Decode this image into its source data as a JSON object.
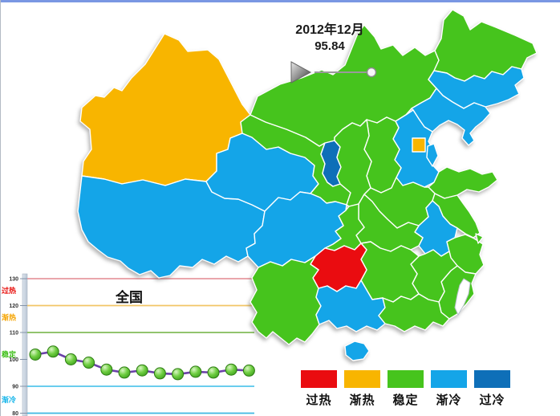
{
  "page": {
    "top_border_color": "#7a97e3"
  },
  "header": {
    "date": "2012年12月",
    "value": "95.84"
  },
  "timeline": {
    "state": "paused",
    "position_pct": 100
  },
  "legend": [
    {
      "status": "过热",
      "color": "#ea0c10"
    },
    {
      "status": "渐热",
      "color": "#f8b500"
    },
    {
      "status": "稳定",
      "color": "#46c41d"
    },
    {
      "status": "渐冷",
      "color": "#14a5e8"
    },
    {
      "status": "过冷",
      "color": "#0e6fb8"
    }
  ],
  "map": {
    "status_colors": {
      "过热": "#ea0c10",
      "渐热": "#f8b500",
      "稳定": "#46c41d",
      "渐冷": "#14a5e8",
      "过冷": "#0e6fb8",
      "无数据": "#ffffff"
    },
    "provinces": [
      {
        "name": "新疆",
        "status": "渐热"
      },
      {
        "name": "西藏",
        "status": "渐冷"
      },
      {
        "name": "青海",
        "status": "渐冷"
      },
      {
        "name": "甘肃",
        "status": "稳定"
      },
      {
        "name": "宁夏",
        "status": "过冷"
      },
      {
        "name": "内蒙古",
        "status": "稳定"
      },
      {
        "name": "黑龙江",
        "status": "稳定"
      },
      {
        "name": "吉林",
        "status": "渐冷"
      },
      {
        "name": "辽宁",
        "status": "渐冷"
      },
      {
        "name": "河北",
        "status": "渐冷"
      },
      {
        "name": "北京",
        "status": "渐热"
      },
      {
        "name": "天津",
        "status": "渐冷"
      },
      {
        "name": "山西",
        "status": "稳定"
      },
      {
        "name": "陕西",
        "status": "稳定"
      },
      {
        "name": "山东",
        "status": "稳定"
      },
      {
        "name": "河南",
        "status": "稳定"
      },
      {
        "name": "江苏",
        "status": "稳定"
      },
      {
        "name": "上海",
        "status": "稳定"
      },
      {
        "name": "安徽",
        "status": "渐冷"
      },
      {
        "name": "浙江",
        "status": "稳定"
      },
      {
        "name": "福建",
        "status": "稳定"
      },
      {
        "name": "江西",
        "status": "稳定"
      },
      {
        "name": "湖北",
        "status": "稳定"
      },
      {
        "name": "湖南",
        "status": "稳定"
      },
      {
        "name": "重庆",
        "status": "稳定"
      },
      {
        "name": "四川",
        "status": "渐冷"
      },
      {
        "name": "贵州",
        "status": "过热"
      },
      {
        "name": "云南",
        "status": "稳定"
      },
      {
        "name": "广西",
        "status": "渐冷"
      },
      {
        "name": "广东",
        "status": "稳定"
      },
      {
        "name": "海南",
        "status": "渐冷"
      },
      {
        "name": "台湾",
        "status": "无数据"
      }
    ]
  },
  "chart_data": {
    "type": "line",
    "title": "全国",
    "values": [
      101.8,
      102.9,
      100.0,
      98.8,
      96.2,
      95.1,
      95.9,
      94.8,
      94.5,
      95.4,
      95.1,
      96.2,
      95.84
    ],
    "current_value": 95.84,
    "yticks": [
      130,
      120,
      110,
      100,
      90,
      80
    ],
    "ylim": [
      78,
      132
    ],
    "grid": false,
    "legend_position": "none",
    "threshold_lines": [
      {
        "value": 130,
        "color": "#e79aa0"
      },
      {
        "value": 120,
        "color": "#f2c566"
      },
      {
        "value": 110,
        "color": "#83bc59"
      },
      {
        "value": 90,
        "color": "#54c6ec"
      },
      {
        "value": 80,
        "color": "#3fb7e2"
      }
    ],
    "zone_labels": [
      {
        "label": "过热",
        "value": 125.5,
        "color": "#e8100d"
      },
      {
        "label": "渐热",
        "value": 115.5,
        "color": "#f5a400"
      },
      {
        "label": "稳定",
        "value": 101.8,
        "color": "#3dbf17"
      },
      {
        "label": "渐冷",
        "value": 85.0,
        "color": "#18b6ea"
      }
    ],
    "line_color": "#6b41a8",
    "marker_color": "#4fbe2d"
  }
}
